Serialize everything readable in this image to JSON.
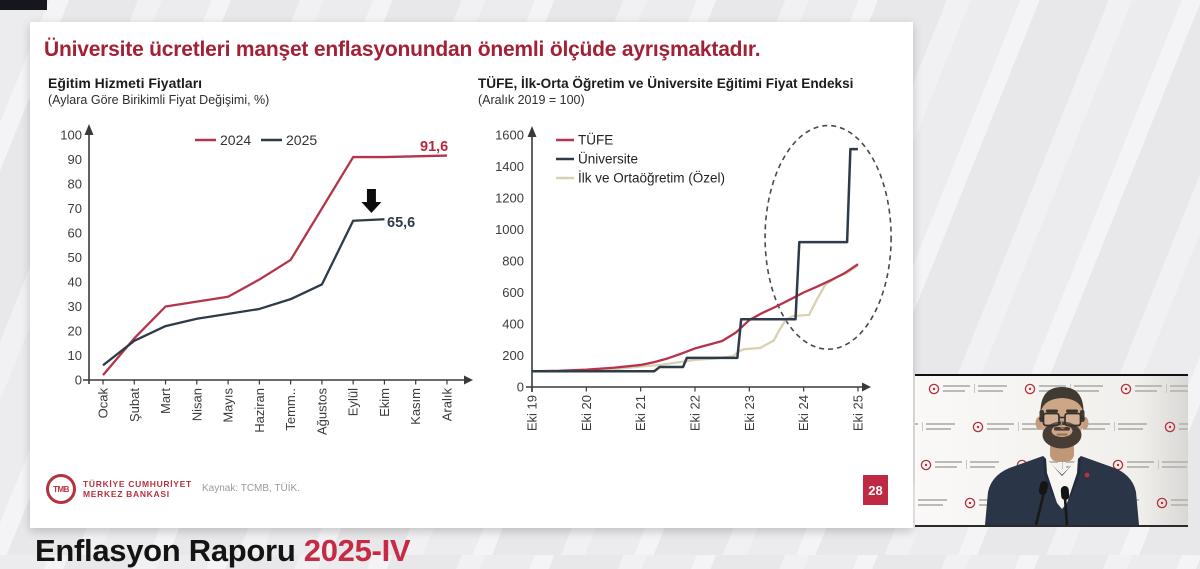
{
  "page": {
    "main_title": "Üniversite ücretleri manşet enflasyonundan önemli ölçüde ayrışmaktadır.",
    "bottom_caption": {
      "prefix": "Enflasyon Raporu ",
      "highlight": "2025-IV"
    }
  },
  "footer": {
    "logo_monogram": "TMB",
    "bank_name_line1": "TÜRKİYE CUMHURİYET",
    "bank_name_line2": "MERKEZ BANKASI",
    "source": "Kaynak: TCMB, TÜİK.",
    "page_number": "28"
  },
  "colors": {
    "title_red": "#a32036",
    "series_red": "#b5344b",
    "series_navy": "#2e3b49",
    "series_beige": "#d8d1b2",
    "axis_gray": "#3a3a3a",
    "page_box_red": "#c02944"
  },
  "chart_data": [
    {
      "type": "line",
      "title": "Eğitim Hizmeti Fiyatları",
      "subtitle": "(Aylara Göre Birikimli Fiyat Değişimi, %)",
      "categories": [
        "Ocak",
        "Şubat",
        "Mart",
        "Nisan",
        "Mayıs",
        "Haziran",
        "Temm..",
        "Ağustos",
        "Eylül",
        "Ekim",
        "Kasım",
        "Aralık"
      ],
      "ylim": [
        0,
        100
      ],
      "ytick_step": 10,
      "grid": false,
      "legend_position": "top",
      "series": [
        {
          "name": "2024",
          "color": "#b5344b",
          "values": [
            2,
            17,
            30,
            32,
            34,
            41,
            49,
            70,
            91,
            91,
            91.3,
            91.6
          ],
          "end_label": "91,6",
          "end_label_color": "#b82741"
        },
        {
          "name": "2025",
          "color": "#2e3b49",
          "values": [
            6,
            16,
            22,
            25,
            27,
            29,
            33,
            39,
            65,
            65.6
          ],
          "end_label": "65,6",
          "end_label_color": "#2e3b49"
        }
      ],
      "annotations": [
        {
          "type": "down-arrow",
          "month_index": 9
        }
      ]
    },
    {
      "type": "line",
      "title": "TÜFE, İlk-Orta Öğretim ve Üniversite Eğitimi Fiyat Endeksi",
      "subtitle": "(Aralık 2019 = 100)",
      "x_tick_labels": [
        "Eki 19",
        "Eki 20",
        "Eki 21",
        "Eki 22",
        "Eki 23",
        "Eki 24",
        "Eki 25"
      ],
      "x_range_years": [
        0,
        6
      ],
      "ylim": [
        0,
        1600
      ],
      "ytick_step": 200,
      "grid": false,
      "legend_position": "top-left",
      "series": [
        {
          "name": "TÜFE",
          "color": "#b5344b",
          "points": [
            [
              0,
              100
            ],
            [
              0.5,
              103
            ],
            [
              1,
              110
            ],
            [
              1.5,
              122
            ],
            [
              2,
              140
            ],
            [
              2.25,
              158
            ],
            [
              2.5,
              182
            ],
            [
              2.75,
              212
            ],
            [
              3,
              245
            ],
            [
              3.25,
              268
            ],
            [
              3.5,
              292
            ],
            [
              3.75,
              345
            ],
            [
              4,
              425
            ],
            [
              4.25,
              472
            ],
            [
              4.5,
              512
            ],
            [
              4.75,
              555
            ],
            [
              5,
              600
            ],
            [
              5.25,
              638
            ],
            [
              5.5,
              678
            ],
            [
              5.75,
              722
            ],
            [
              6,
              780
            ]
          ]
        },
        {
          "name": "Üniversite",
          "color": "#2e3b49",
          "points": [
            [
              0,
              100
            ],
            [
              2.25,
              100
            ],
            [
              2.35,
              127
            ],
            [
              2.78,
              127
            ],
            [
              2.85,
              185
            ],
            [
              3.78,
              185
            ],
            [
              3.85,
              430
            ],
            [
              4.85,
              430
            ],
            [
              4.92,
              920
            ],
            [
              5.8,
              920
            ],
            [
              5.86,
              1510
            ],
            [
              6,
              1510
            ]
          ]
        },
        {
          "name": "İlk ve Ortaöğretim (Özel)",
          "color": "#d8d1b2",
          "points": [
            [
              0,
              100
            ],
            [
              0.5,
              99
            ],
            [
              1,
              100
            ],
            [
              1.5,
              112
            ],
            [
              2,
              130
            ],
            [
              2.4,
              142
            ],
            [
              2.8,
              162
            ],
            [
              3,
              172
            ],
            [
              3.4,
              182
            ],
            [
              3.7,
              195
            ],
            [
              3.8,
              225
            ],
            [
              3.9,
              240
            ],
            [
              4.2,
              248
            ],
            [
              4.45,
              295
            ],
            [
              4.55,
              360
            ],
            [
              4.68,
              430
            ],
            [
              4.8,
              450
            ],
            [
              5.1,
              458
            ],
            [
              5.25,
              560
            ],
            [
              5.4,
              650
            ],
            [
              5.6,
              695
            ],
            [
              5.8,
              725
            ],
            [
              6,
              772
            ]
          ]
        }
      ],
      "highlight": {
        "shape": "dashed-ellipse",
        "x_year_center": 5.45,
        "x_year_radius": 1.16,
        "value_center": 950,
        "value_radius": 710
      }
    }
  ]
}
